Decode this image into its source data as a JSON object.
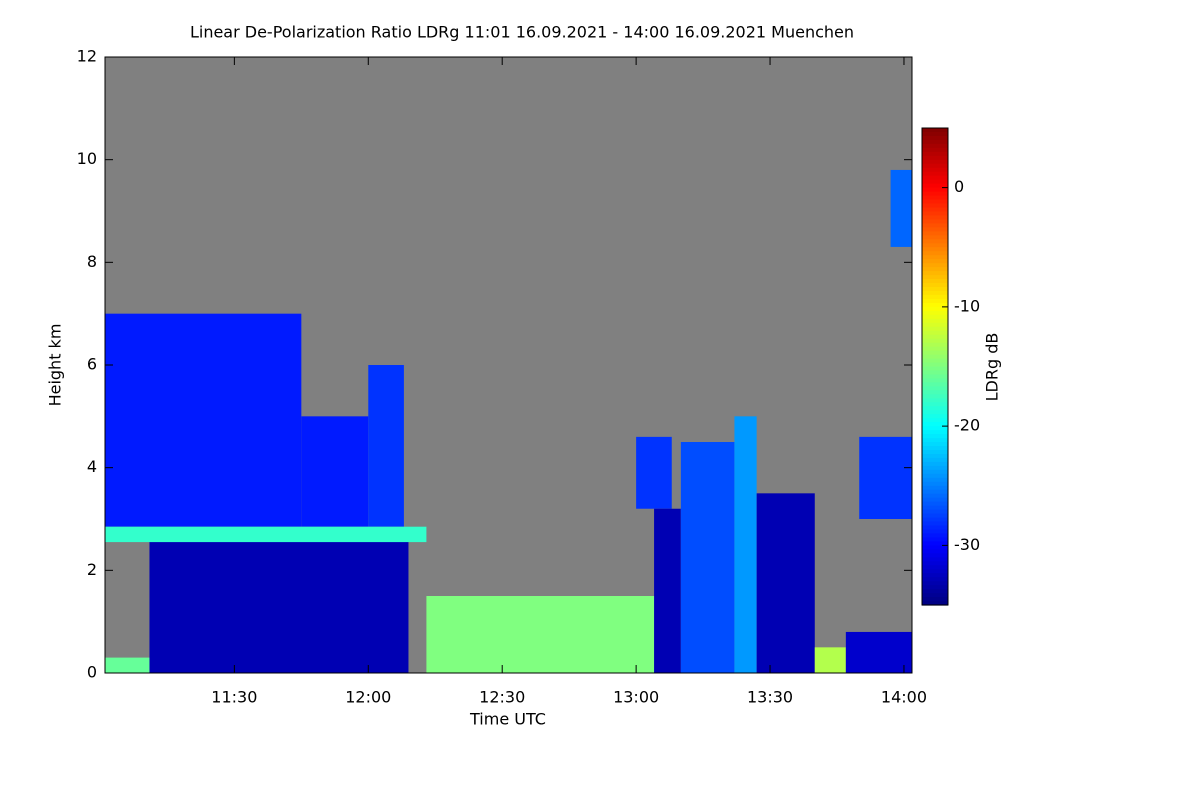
{
  "chart_data": {
    "type": "heatmap",
    "title": "Linear De-Polarization Ratio LDRg   11:01 16.09.2021 - 14:00 16.09.2021 Muenchen",
    "x_label": "Time UTC",
    "y_label": "Height km",
    "colorbar_label": "LDRg dB",
    "xlim": [
      11.017,
      14.03
    ],
    "xticks": [
      {
        "value": 11.5,
        "label": "11:30"
      },
      {
        "value": 12.0,
        "label": "12:00"
      },
      {
        "value": 12.5,
        "label": "12:30"
      },
      {
        "value": 13.0,
        "label": "13:00"
      },
      {
        "value": 13.5,
        "label": "13:30"
      },
      {
        "value": 14.0,
        "label": "14:00"
      }
    ],
    "ylim": [
      0,
      12
    ],
    "yticks": [
      0,
      2,
      4,
      6,
      8,
      10,
      12
    ],
    "zlim": [
      -35,
      5
    ],
    "zticks": [
      0,
      -10,
      -20,
      -30
    ],
    "colormap": "jet",
    "no_data_color": "#808080",
    "regions": [
      {
        "t0": 11.017,
        "t1": 11.75,
        "h0": 2.85,
        "h1": 7.0,
        "ldr": -29
      },
      {
        "t0": 11.75,
        "t1": 12.0,
        "h0": 2.85,
        "h1": 5.0,
        "ldr": -29
      },
      {
        "t0": 12.0,
        "t1": 12.133,
        "h0": 2.85,
        "h1": 6.0,
        "ldr": -28
      },
      {
        "t0": 11.183,
        "t1": 12.15,
        "h0": 0.0,
        "h1": 2.6,
        "ldr": -33
      },
      {
        "t0": 11.017,
        "t1": 12.217,
        "h0": 2.55,
        "h1": 2.85,
        "ldr": -18
      },
      {
        "t0": 11.017,
        "t1": 11.183,
        "h0": 0.0,
        "h1": 0.3,
        "ldr": -16
      },
      {
        "t0": 12.217,
        "t1": 13.083,
        "h0": 0.0,
        "h1": 1.5,
        "ldr": -15
      },
      {
        "t0": 13.0,
        "t1": 13.133,
        "h0": 3.2,
        "h1": 4.6,
        "ldr": -28
      },
      {
        "t0": 13.067,
        "t1": 13.167,
        "h0": 0.0,
        "h1": 3.2,
        "ldr": -33
      },
      {
        "t0": 13.167,
        "t1": 13.367,
        "h0": 0.0,
        "h1": 4.5,
        "ldr": -27
      },
      {
        "t0": 13.367,
        "t1": 13.45,
        "h0": 0.0,
        "h1": 5.0,
        "ldr": -24
      },
      {
        "t0": 13.45,
        "t1": 13.667,
        "h0": 0.0,
        "h1": 3.5,
        "ldr": -33
      },
      {
        "t0": 13.667,
        "t1": 13.783,
        "h0": 0.0,
        "h1": 0.5,
        "ldr": -13
      },
      {
        "t0": 13.783,
        "t1": 14.03,
        "h0": 0.0,
        "h1": 0.8,
        "ldr": -32
      },
      {
        "t0": 13.833,
        "t1": 14.03,
        "h0": 3.0,
        "h1": 4.6,
        "ldr": -28
      },
      {
        "t0": 13.95,
        "t1": 14.03,
        "h0": 8.3,
        "h1": 9.8,
        "ldr": -26
      }
    ]
  }
}
